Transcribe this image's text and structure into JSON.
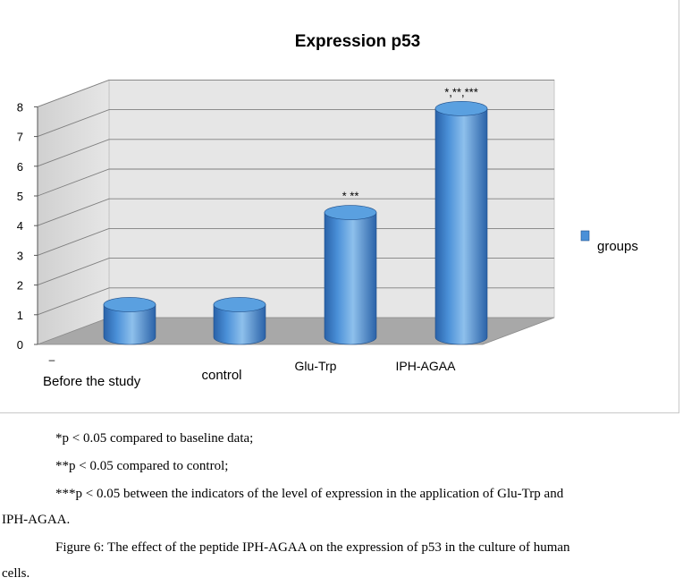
{
  "chart_data": {
    "type": "bar",
    "title": "Expression p53",
    "categories": [
      "Before the study",
      "control",
      "Glu-Trp",
      "IPH-AGAA"
    ],
    "values": [
      1.1,
      1.1,
      4.2,
      7.7
    ],
    "series": [
      {
        "name": "groups",
        "values": [
          1.1,
          1.1,
          4.2,
          7.7
        ]
      }
    ],
    "annotations": [
      "",
      "",
      "* **",
      "*,**,***"
    ],
    "ylim": [
      0,
      8
    ],
    "yticks": [
      "0",
      "1",
      "2",
      "3",
      "4",
      "5",
      "6",
      "7",
      "8"
    ],
    "grid": true,
    "legend": "right",
    "first_tick_mark": "–"
  },
  "notes": [
    "*p < 0.05 compared to baseline data;",
    "**p < 0.05 compared to control;",
    "***p < 0.05 between the indicators of the level of expression in the application of Glu-Trp and",
    "IPH-AGAA."
  ],
  "figure_caption": [
    "Figure 6: The effect of the peptide IPH-AGAA on the expression of p53 in the culture of human",
    "cells."
  ],
  "colors": {
    "bar_light": "#8ec0ec",
    "bar_mid": "#4a90d8",
    "bar_dark": "#2a62a8",
    "bar_top": "#5aa0e0",
    "wall": "#e6e6e6",
    "floor": "#a8a8a8",
    "grid": "#7f7f7f"
  }
}
